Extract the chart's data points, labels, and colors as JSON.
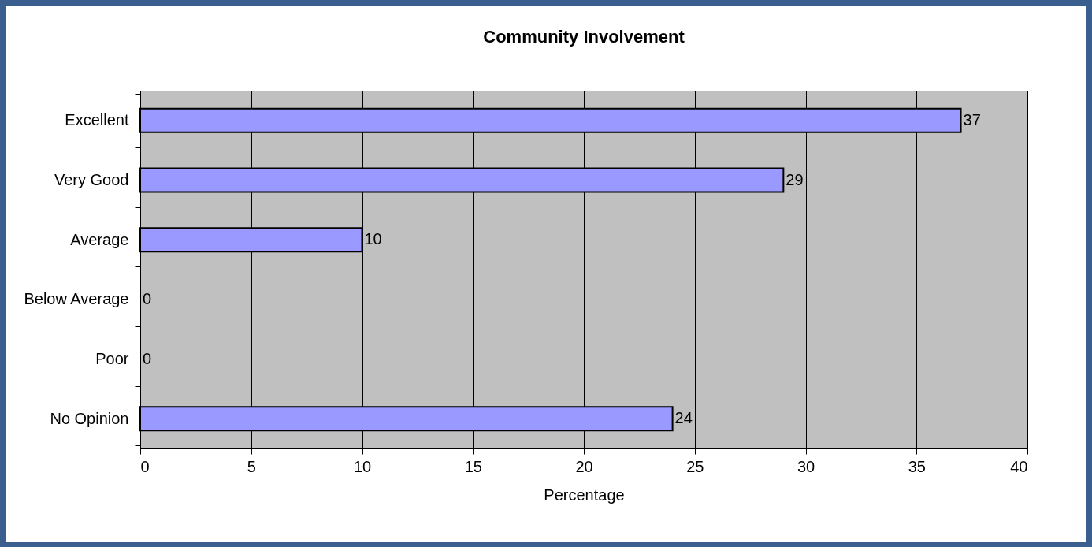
{
  "chart_data": {
    "type": "bar",
    "orientation": "horizontal",
    "title": "Community  Involvement",
    "xlabel": "Percentage",
    "categories": [
      "Excellent",
      "Very Good",
      "Average",
      "Below Average",
      "Poor",
      "No Opinion"
    ],
    "values": [
      37,
      29,
      10,
      0,
      0,
      24
    ],
    "color": "#9999ff",
    "xlim": [
      0,
      40
    ],
    "xticks": [
      0,
      5,
      10,
      15,
      20,
      25,
      30,
      35,
      40
    ],
    "grid": "x",
    "data_labels": true
  }
}
